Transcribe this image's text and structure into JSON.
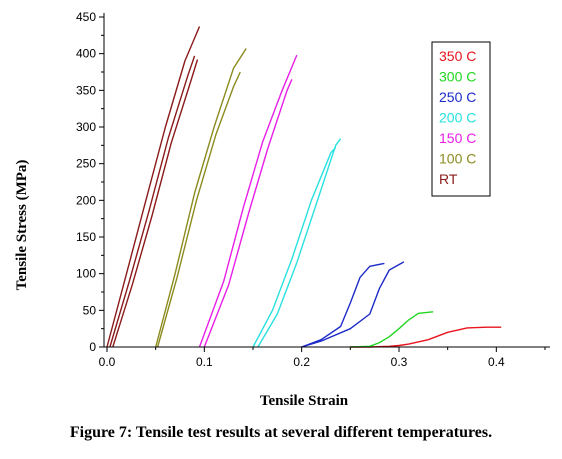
{
  "chart_data": {
    "type": "line",
    "xlabel": "Tensile Strain",
    "ylabel": "Tensile Stress (MPa)",
    "xlim": [
      -0.005,
      0.455
    ],
    "ylim": [
      0,
      450
    ],
    "xticks": [
      "0.0",
      "0.1",
      "0.2",
      "0.3",
      "0.4"
    ],
    "yticks": [
      "0",
      "50",
      "100",
      "150",
      "200",
      "250",
      "300",
      "350",
      "400",
      "450"
    ],
    "grid": false,
    "legend_position": "top-right",
    "series": [
      {
        "name": "350 C",
        "color": "#e8141e",
        "curves": [
          {
            "x": [
              0.25,
              0.27,
              0.29,
              0.3,
              0.31,
              0.33,
              0.35,
              0.37,
              0.39,
              0.405
            ],
            "y": [
              0,
              0,
              1,
              2,
              4,
              10,
              20,
              26,
              27,
              27
            ]
          }
        ]
      },
      {
        "name": "300 C",
        "color": "#22d622",
        "curves": [
          {
            "x": [
              0.25,
              0.27,
              0.28,
              0.29,
              0.3,
              0.31,
              0.32,
              0.335
            ],
            "y": [
              0,
              1,
              6,
              14,
              25,
              37,
              46,
              48
            ]
          }
        ]
      },
      {
        "name": "250 C",
        "color": "#1c2bc8",
        "curves": [
          {
            "x": [
              0.2,
              0.22,
              0.24,
              0.25,
              0.26,
              0.27,
              0.285
            ],
            "y": [
              0,
              10,
              28,
              60,
              95,
              110,
              114
            ]
          },
          {
            "x": [
              0.2,
              0.22,
              0.25,
              0.27,
              0.28,
              0.29,
              0.305
            ],
            "y": [
              0,
              8,
              25,
              45,
              80,
              105,
              116
            ]
          }
        ]
      },
      {
        "name": "200 C",
        "color": "#27e1e1",
        "curves": [
          {
            "x": [
              0.15,
              0.17,
              0.19,
              0.21,
              0.23,
              0.235
            ],
            "y": [
              0,
              50,
              120,
              200,
              265,
              272
            ]
          },
          {
            "x": [
              0.155,
              0.175,
              0.195,
              0.215,
              0.235,
              0.24
            ],
            "y": [
              0,
              45,
              115,
              195,
              275,
              284
            ]
          }
        ]
      },
      {
        "name": "150 C",
        "color": "#e81ee8",
        "curves": [
          {
            "x": [
              0.095,
              0.12,
              0.14,
              0.16,
              0.18,
              0.195
            ],
            "y": [
              0,
              90,
              190,
              280,
              350,
              398
            ]
          },
          {
            "x": [
              0.1,
              0.125,
              0.145,
              0.165,
              0.185,
              0.19
            ],
            "y": [
              0,
              85,
              180,
              270,
              350,
              365
            ]
          }
        ]
      },
      {
        "name": "100 C",
        "color": "#8b8b1e",
        "curves": [
          {
            "x": [
              0.05,
              0.07,
              0.09,
              0.11,
              0.13,
              0.143
            ],
            "y": [
              0,
              100,
              210,
              300,
              380,
              407
            ]
          },
          {
            "x": [
              0.052,
              0.072,
              0.092,
              0.112,
              0.13,
              0.137
            ],
            "y": [
              0,
              95,
              200,
              290,
              355,
              375
            ]
          }
        ]
      },
      {
        "name": "RT",
        "color": "#8b1a1a",
        "curves": [
          {
            "x": [
              0.0,
              0.02,
              0.04,
              0.06,
              0.08,
              0.095
            ],
            "y": [
              0,
              100,
              200,
              300,
              390,
              437
            ]
          },
          {
            "x": [
              0.003,
              0.023,
              0.043,
              0.063,
              0.083,
              0.09
            ],
            "y": [
              0,
              90,
              185,
              285,
              370,
              397
            ]
          },
          {
            "x": [
              0.006,
              0.026,
              0.046,
              0.066,
              0.086,
              0.093
            ],
            "y": [
              0,
              85,
              178,
              278,
              362,
              392
            ]
          }
        ]
      }
    ]
  },
  "caption": "Figure 7: Tensile test results at several different temperatures."
}
